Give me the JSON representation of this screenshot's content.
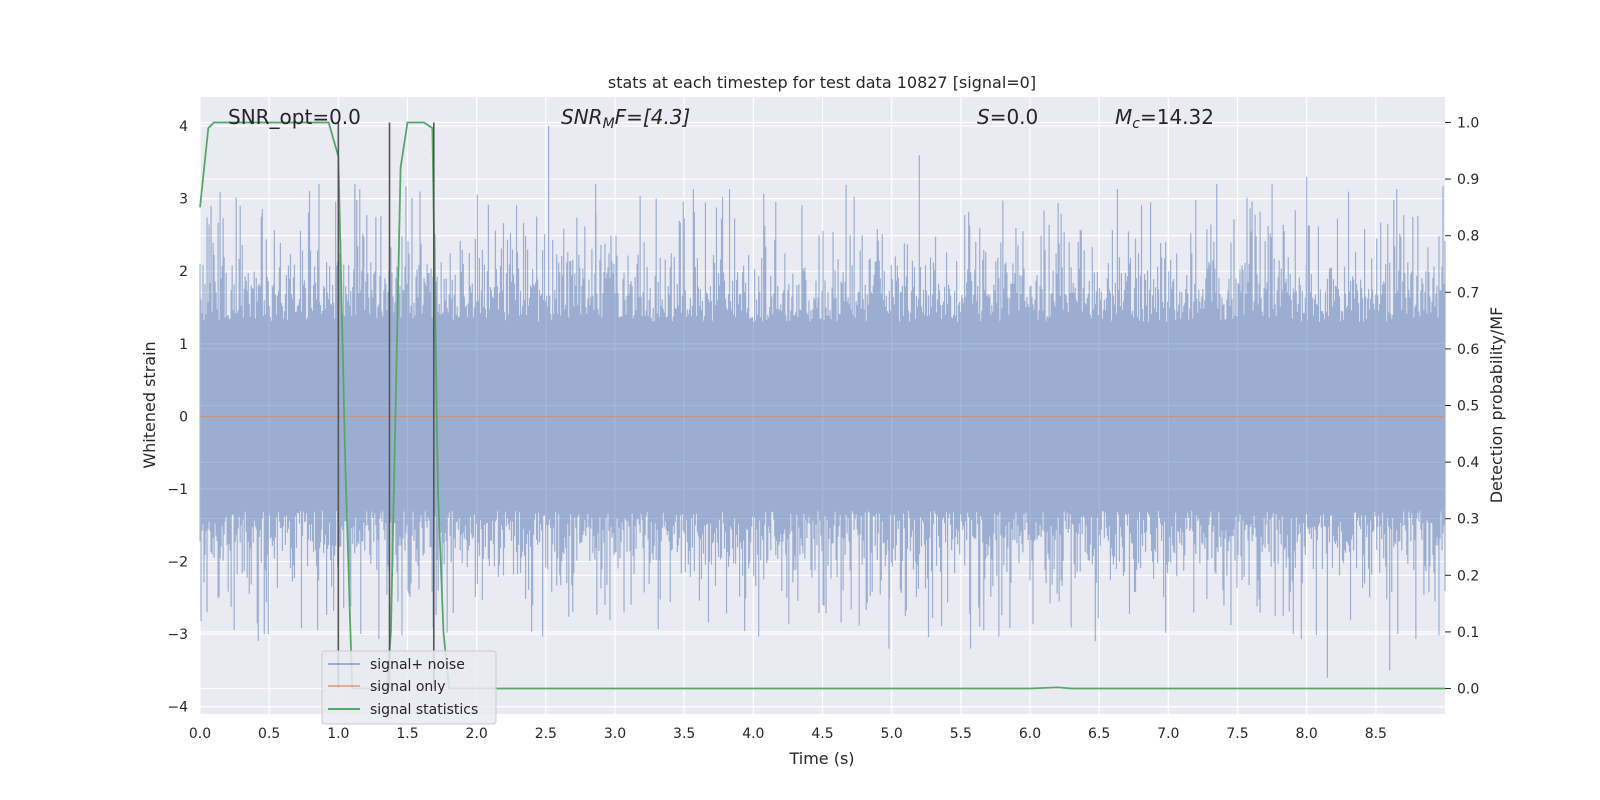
{
  "colors": {
    "background": "#eaeaf2",
    "grid": "#ffffff",
    "noise": "#4c72b0",
    "signal": "#dd8452",
    "statistics": "#55a868",
    "vline": "#555555"
  },
  "chart_data": {
    "type": "line",
    "title": "stats at each timestep for test data 10827 [signal=0]",
    "xlabel": "Time (s)",
    "ylabel": "Whitened strain",
    "y2label": "Detection probability/MF",
    "xlim": [
      0.0,
      9.0
    ],
    "ylim": [
      -4.1,
      4.4
    ],
    "y2lim": [
      -0.045,
      1.045
    ],
    "xticks": [
      "0.0",
      "0.5",
      "1.0",
      "1.5",
      "2.0",
      "2.5",
      "3.0",
      "3.5",
      "4.0",
      "4.5",
      "5.0",
      "5.5",
      "6.0",
      "6.5",
      "7.0",
      "7.5",
      "8.0",
      "8.5"
    ],
    "yticks": [
      "4",
      "3",
      "2",
      "1",
      "0",
      "−1",
      "−2",
      "−3",
      "−4"
    ],
    "y2ticks": [
      "1.0",
      "0.9",
      "0.8",
      "0.7",
      "0.6",
      "0.5",
      "0.4",
      "0.3",
      "0.2",
      "0.1",
      "0.0"
    ],
    "grid": true,
    "legend_position": "lower-left",
    "annotations": {
      "snr_opt": "SNR_opt=0.0",
      "snr_mf_main": "SNR",
      "snr_mf_sub": "M",
      "snr_mf_tail": "F=[4.3]",
      "s_main": "S",
      "s_tail": "=0.0",
      "mc_main": "M",
      "mc_sub": "c",
      "mc_tail": "=14.32"
    },
    "series": [
      {
        "name": "signal+ noise",
        "description_values": "dense whitened noise, roughly within [-3.6, 3.9]",
        "peaks": [
          [
            0.08,
            2.9
          ],
          [
            0.86,
            3.2
          ],
          [
            1.12,
            3.2
          ],
          [
            2.52,
            4.0
          ],
          [
            2.86,
            3.2
          ],
          [
            5.2,
            3.6
          ],
          [
            7.35,
            3.2
          ],
          [
            7.75,
            3.2
          ],
          [
            8.0,
            3.3
          ],
          [
            8.15,
            -3.6
          ],
          [
            8.6,
            -3.5
          ],
          [
            4.98,
            -3.2
          ],
          [
            5.57,
            -3.2
          ]
        ]
      },
      {
        "name": "signal only",
        "x": [
          0.0,
          9.0
        ],
        "y": [
          0.0,
          0.0
        ]
      },
      {
        "name": "signal statistics",
        "x": [
          0.0,
          0.06,
          0.1,
          0.2,
          0.5,
          0.8,
          0.93,
          1.0,
          1.05,
          1.1,
          1.35,
          1.38,
          1.45,
          1.5,
          1.6,
          1.62,
          1.68,
          1.72,
          1.76,
          1.8,
          6.0,
          6.2,
          6.3,
          8.2,
          9.0
        ],
        "y": [
          0.85,
          0.99,
          1.0,
          1.0,
          1.0,
          1.0,
          1.0,
          0.94,
          0.4,
          0.0,
          0.0,
          0.1,
          0.92,
          1.0,
          1.0,
          1.0,
          0.99,
          0.35,
          0.1,
          0.0,
          0.0,
          0.002,
          0.0,
          0.0,
          0.0
        ]
      }
    ],
    "vlines": [
      1.0,
      1.37,
      1.69
    ]
  }
}
